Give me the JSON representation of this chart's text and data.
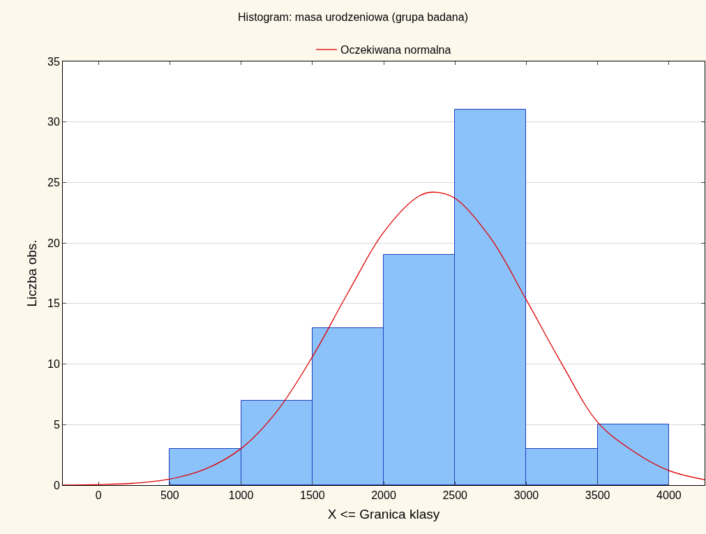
{
  "chart_data": {
    "type": "histogram",
    "title": "Histogram: masa urodzeniowa (grupa badana)",
    "xlabel": "X <= Granica klasy",
    "ylabel": "Liczba obs.",
    "bins": [
      500,
      1000,
      1500,
      2000,
      2500,
      3000,
      3500,
      4000
    ],
    "values": [
      3,
      7,
      13,
      19,
      31,
      3,
      5
    ],
    "color": "#8cc2fa",
    "series": [
      {
        "type": "line",
        "name": "Oczekiwana normalna",
        "color": "#e00000",
        "x": [
          -250,
          0,
          250,
          500,
          750,
          1000,
          1250,
          1500,
          1750,
          2000,
          2250,
          2360,
          2500,
          2750,
          3000,
          3250,
          3500,
          3750,
          4000,
          4250
        ],
        "values": [
          0.01,
          0.05,
          0.16,
          0.5,
          1.33,
          3.02,
          6.08,
          10.6,
          15.9,
          20.9,
          23.9,
          24.2,
          23.7,
          20.4,
          15.3,
          10.0,
          5.2,
          2.8,
          1.2,
          0.45
        ]
      }
    ],
    "xlim": [
      -250,
      4250
    ],
    "xticks": [
      0,
      500,
      1000,
      1500,
      2000,
      2500,
      3000,
      3500,
      4000
    ],
    "ylim": [
      0,
      35
    ],
    "yticks": [
      0,
      5,
      10,
      15,
      20,
      25,
      30,
      35
    ],
    "grid": "y",
    "legend": "top"
  }
}
